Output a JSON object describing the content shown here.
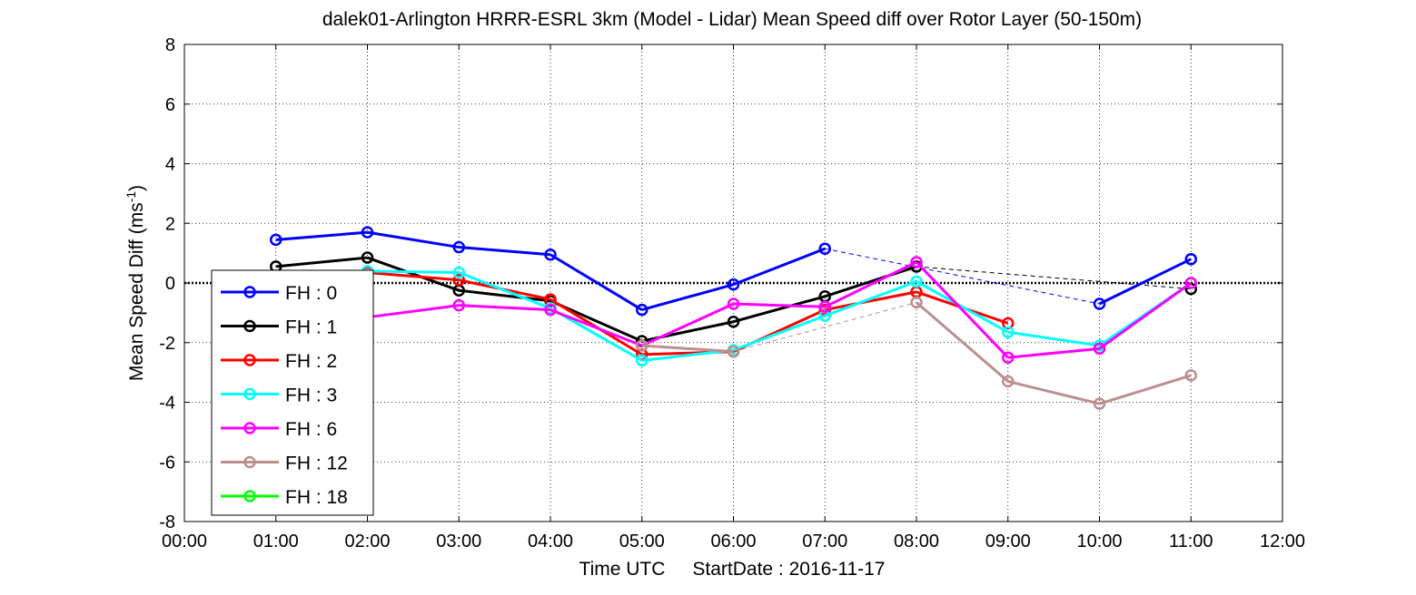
{
  "chart_data": {
    "type": "line",
    "title": "dalek01-Arlington HRRR-ESRL 3km (Model - Lidar) Mean Speed diff over Rotor Layer (50-150m)",
    "xlabel": "Time UTC",
    "xlabel_extra": "StartDate : 2016-11-17",
    "ylabel_main": "Mean Speed Diff (ms",
    "ylabel_sup": "-1",
    "ylabel_close": ")",
    "xlim": [
      0,
      12
    ],
    "ylim": [
      -8,
      8
    ],
    "xticks": [
      "00:00",
      "01:00",
      "02:00",
      "03:00",
      "04:00",
      "05:00",
      "06:00",
      "07:00",
      "08:00",
      "09:00",
      "10:00",
      "11:00",
      "12:00"
    ],
    "yticks": [
      "8",
      "6",
      "4",
      "2",
      "0",
      "-2",
      "-4",
      "-6",
      "-8"
    ],
    "grid": true,
    "legend_position": "bottom-left",
    "series": [
      {
        "name": "FH : 0",
        "color": "#0000ff",
        "points": [
          [
            1,
            1.45
          ],
          [
            2,
            1.7
          ],
          [
            3,
            1.2
          ],
          [
            4,
            0.95
          ],
          [
            5,
            -0.9
          ],
          [
            6,
            -0.05
          ],
          [
            7,
            1.15
          ],
          [
            10,
            -0.7
          ],
          [
            11,
            0.8
          ]
        ]
      },
      {
        "name": "FH : 1",
        "color": "#000000",
        "points": [
          [
            1,
            0.55
          ],
          [
            2,
            0.85
          ],
          [
            3,
            -0.25
          ],
          [
            4,
            -0.6
          ],
          [
            5,
            -1.95
          ],
          [
            6,
            -1.3
          ],
          [
            7,
            -0.45
          ],
          [
            8,
            0.55
          ],
          [
            11,
            -0.2
          ]
        ]
      },
      {
        "name": "FH : 2",
        "color": "#ff0000",
        "points": [
          [
            2,
            0.35
          ],
          [
            3,
            0.1
          ],
          [
            4,
            -0.55
          ],
          [
            5,
            -2.4
          ],
          [
            6,
            -2.3
          ],
          [
            7,
            -0.9
          ],
          [
            8,
            -0.3
          ],
          [
            9,
            -1.35
          ]
        ]
      },
      {
        "name": "FH : 3",
        "color": "#00ffff",
        "points": [
          [
            2,
            0.4
          ],
          [
            3,
            0.35
          ],
          [
            4,
            -0.85
          ],
          [
            5,
            -2.6
          ],
          [
            6,
            -2.25
          ],
          [
            7,
            -1.1
          ],
          [
            8,
            0.05
          ],
          [
            9,
            -1.65
          ],
          [
            10,
            -2.1
          ],
          [
            11,
            0.0
          ]
        ]
      },
      {
        "name": "FH : 6",
        "color": "#ff00ff",
        "points": [
          [
            2,
            -1.15
          ],
          [
            3,
            -0.75
          ],
          [
            4,
            -0.9
          ],
          [
            5,
            -2.1
          ],
          [
            6,
            -0.7
          ],
          [
            7,
            -0.8
          ],
          [
            8,
            0.7
          ],
          [
            9,
            -2.5
          ],
          [
            10,
            -2.2
          ],
          [
            11,
            0.0
          ]
        ]
      },
      {
        "name": "FH : 12",
        "color": "#bc8f8f",
        "points": [
          [
            5,
            -2.1
          ],
          [
            6,
            -2.3
          ],
          [
            8,
            -0.65
          ],
          [
            9,
            -3.3
          ],
          [
            10,
            -4.05
          ],
          [
            11,
            -3.1
          ]
        ]
      },
      {
        "name": "FH : 18",
        "color": "#00ff00",
        "points": []
      }
    ]
  }
}
